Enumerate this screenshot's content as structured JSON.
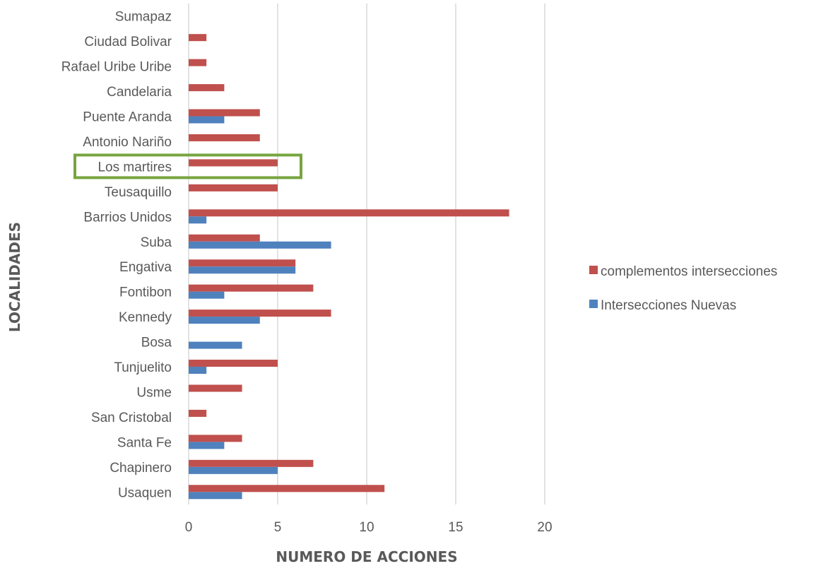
{
  "chart_data": {
    "type": "bar",
    "orientation": "horizontal",
    "categories": [
      "Usaquen",
      "Chapinero",
      "Santa Fe",
      "San Cristobal",
      "Usme",
      "Tunjuelito",
      "Bosa",
      "Kennedy",
      "Fontibon",
      "Engativa",
      "Suba",
      "Barrios Unidos",
      "Teusaquillo",
      "Los martires",
      "Antonio Nariño",
      "Puente Aranda",
      "Candelaria",
      "Rafael Uribe Uribe",
      "Ciudad Bolivar",
      "Sumapaz"
    ],
    "series": [
      {
        "name": "complementos intersecciones",
        "color": "#c0504d",
        "values": [
          11,
          7,
          3,
          1,
          3,
          5,
          0,
          8,
          7,
          6,
          4,
          18,
          5,
          5,
          4,
          4,
          2,
          1,
          1,
          0
        ]
      },
      {
        "name": "Intersecciones Nuevas",
        "color": "#4f81bd",
        "values": [
          3,
          5,
          2,
          0,
          0,
          1,
          3,
          4,
          2,
          6,
          8,
          1,
          0,
          0,
          0,
          2,
          0,
          0,
          0,
          0
        ]
      }
    ],
    "xlim": [
      0,
      20
    ],
    "xticks": [
      "0",
      "5",
      "10",
      "15",
      "20"
    ],
    "xlabel": "NUMERO DE ACCIONES",
    "ylabel": "LOCALIDADES",
    "grid": true,
    "legend_position": "right",
    "highlight": {
      "category": "Los martires",
      "color": "#77a53f"
    }
  }
}
